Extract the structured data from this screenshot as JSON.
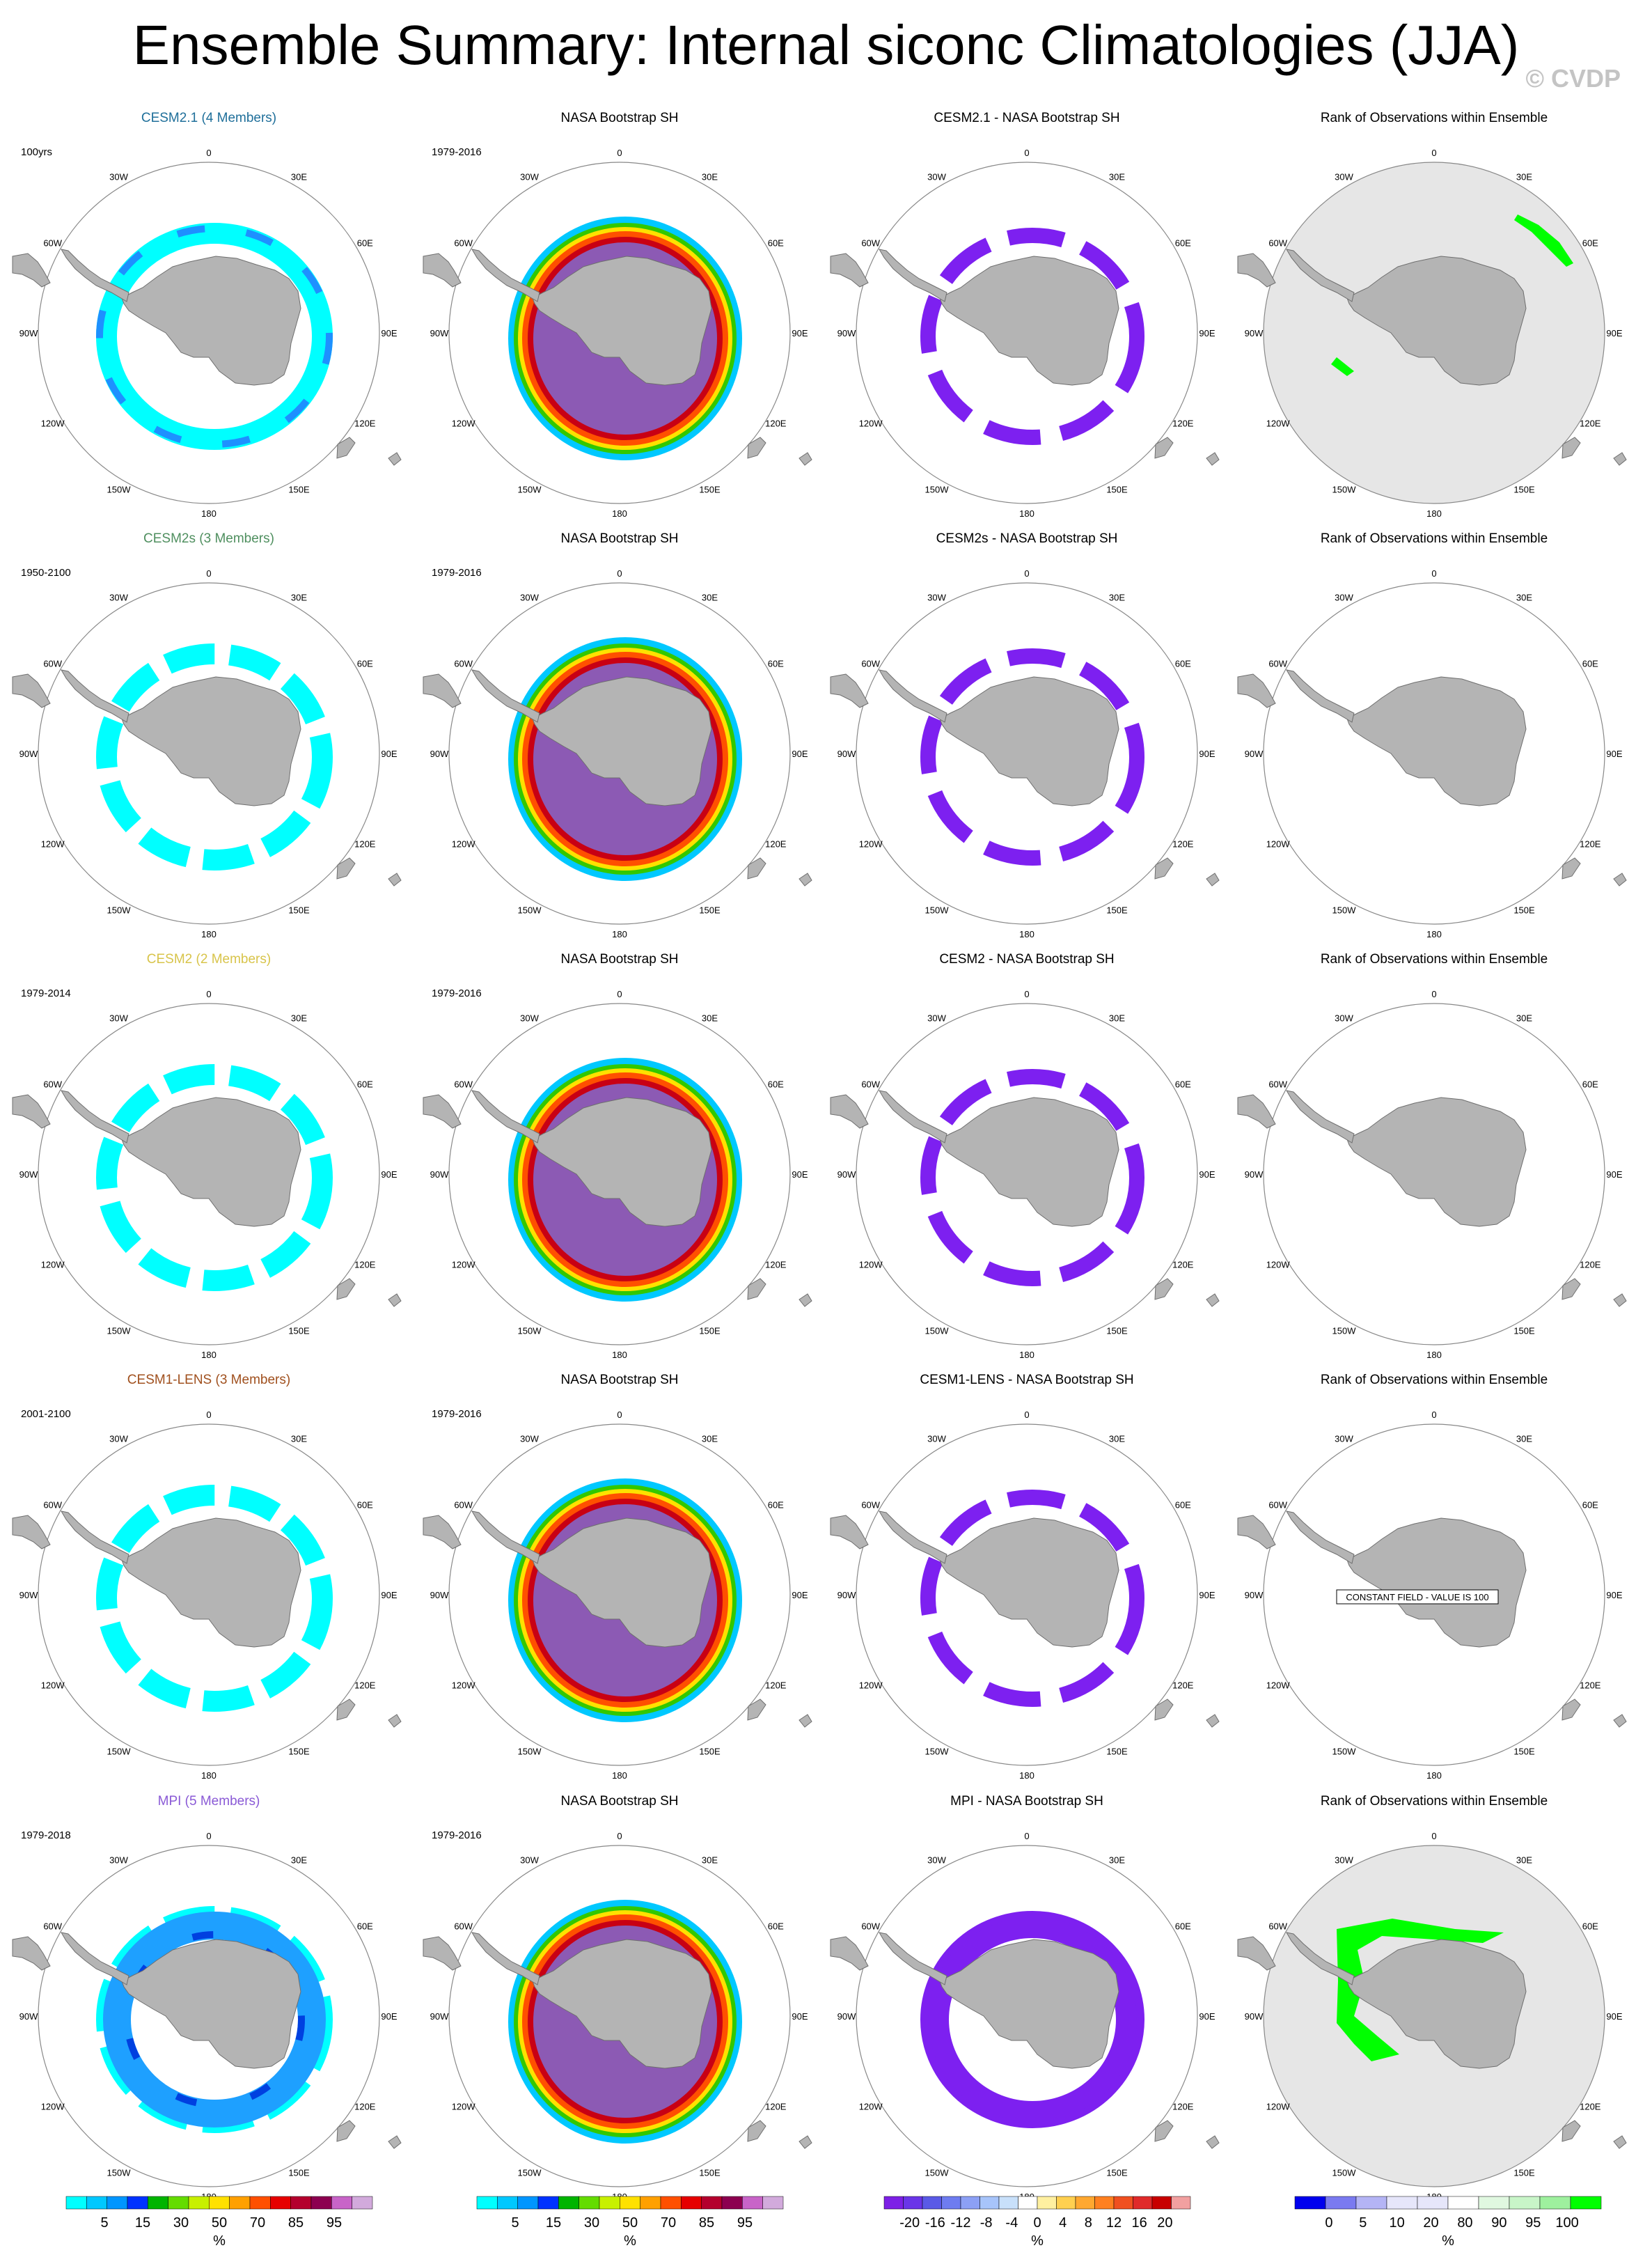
{
  "title": "Ensemble Summary: Internal siconc Climatologies (JJA)",
  "watermark": "© CVDP",
  "longitude_labels": [
    "0",
    "30E",
    "60E",
    "90E",
    "120E",
    "150E",
    "180",
    "150W",
    "120W",
    "90W",
    "60W",
    "30W"
  ],
  "rows": [
    {
      "model": "CESM2.1 (4 Members)",
      "model_color": "#1f6f9a",
      "period": "100yrs",
      "diff_title": "CESM2.1 - NASA Bootstrap SH",
      "rank_fill": "#e6e6e6"
    },
    {
      "model": "CESM2s (3 Members)",
      "model_color": "#4f8f5f",
      "period": "1950-2100",
      "diff_title": "CESM2s - NASA Bootstrap SH",
      "rank_fill": "#ffffff"
    },
    {
      "model": "CESM2 (2 Members)",
      "model_color": "#d8c44a",
      "period": "1979-2014",
      "diff_title": "CESM2 - NASA Bootstrap SH",
      "rank_fill": "#ffffff"
    },
    {
      "model": "CESM1-LENS (3 Members)",
      "model_color": "#a0501e",
      "period": "2001-2100",
      "diff_title": "CESM1-LENS - NASA Bootstrap SH",
      "rank_fill": "#ffffff",
      "rank_note": "CONSTANT FIELD - VALUE IS 100"
    },
    {
      "model": "MPI (5 Members)",
      "model_color": "#8a5ad6",
      "period": "1979-2018",
      "diff_title": "MPI - NASA Bootstrap SH",
      "rank_fill": "#e6e6e6"
    }
  ],
  "obs": {
    "title": "NASA Bootstrap SH",
    "period": "1979-2016"
  },
  "rank_title": "Rank of Observations within Ensemble",
  "colorbars": {
    "conc": {
      "labels": [
        "5",
        "15",
        "30",
        "50",
        "70",
        "85",
        "95"
      ],
      "unit": "%",
      "colors": [
        "#00ffff",
        "#00c8ff",
        "#0096ff",
        "#0032ff",
        "#00b400",
        "#64dc00",
        "#c8f000",
        "#ffe100",
        "#ffa000",
        "#ff5000",
        "#e60000",
        "#b4002d",
        "#8c0050",
        "#c864c8",
        "#d2aadc"
      ]
    },
    "diff": {
      "labels": [
        "-20",
        "-16",
        "-12",
        "-8",
        "-4",
        "0",
        "4",
        "8",
        "12",
        "16",
        "20"
      ],
      "unit": "%",
      "colors": [
        "#7d20e6",
        "#6a35e8",
        "#5a5ae6",
        "#6e7cf0",
        "#8ca0f5",
        "#a7c4fa",
        "#c8e0fa",
        "#ffffff",
        "#fff0a0",
        "#ffd050",
        "#ffa830",
        "#ff8020",
        "#f05020",
        "#e02a2a",
        "#c80000",
        "#f2a0a0"
      ]
    },
    "rank": {
      "labels": [
        "0",
        "5",
        "10",
        "20",
        "80",
        "90",
        "95",
        "100"
      ],
      "unit": "%",
      "colors": [
        "#0000ee",
        "#7a7af0",
        "#b4b4f5",
        "#e6e6fa",
        "#e6e6fa",
        "#ffffff",
        "#e0f8e0",
        "#c8f5c8",
        "#9ef09e",
        "#00ff00"
      ]
    }
  }
}
